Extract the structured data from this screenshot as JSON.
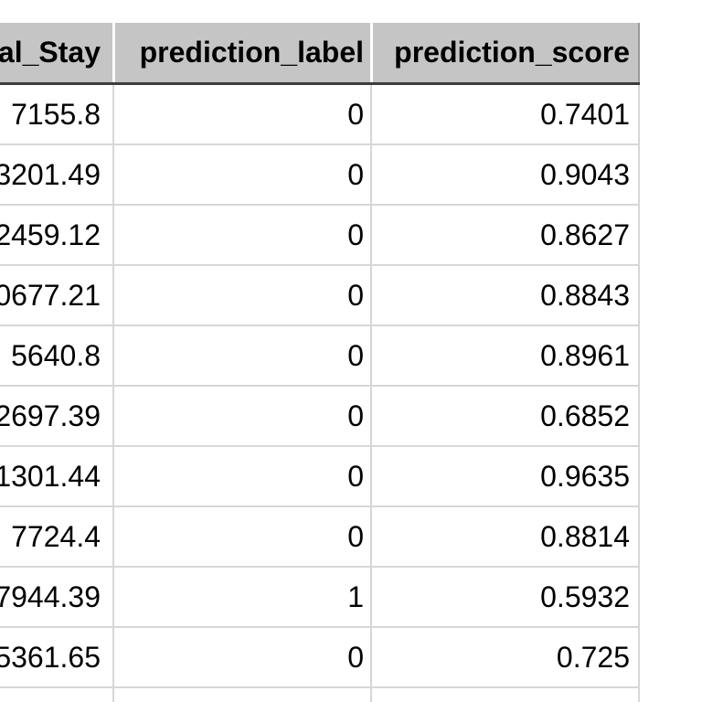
{
  "colors": {
    "header_bg": "#c5c5c5",
    "header_underline": "#3d3d3d",
    "grid_line": "#d7d7d7",
    "header_separator": "#ffffff",
    "header_edge": "#9a9a9a",
    "text": "#000000",
    "background": "#ffffff"
  },
  "table": {
    "description": "Prediction results table, left column clipped at screen edge",
    "columns": [
      {
        "id": "al_stay",
        "label": "al_Stay"
      },
      {
        "id": "prediction_label",
        "label": "prediction_label"
      },
      {
        "id": "prediction_score",
        "label": "prediction_score"
      }
    ],
    "rows": [
      [
        "7155.8",
        "0",
        "0.7401"
      ],
      [
        "3201.49",
        "0",
        "0.9043"
      ],
      [
        "2459.12",
        "0",
        "0.8627"
      ],
      [
        "0677.21",
        "0",
        "0.8843"
      ],
      [
        "5640.8",
        "0",
        "0.8961"
      ],
      [
        "2697.39",
        "0",
        "0.6852"
      ],
      [
        "1301.44",
        "0",
        "0.9635"
      ],
      [
        "7724.4",
        "0",
        "0.8814"
      ],
      [
        "7944.39",
        "1",
        "0.5932"
      ],
      [
        "5361.65",
        "0",
        "0.725"
      ]
    ]
  }
}
